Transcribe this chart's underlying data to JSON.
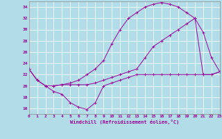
{
  "xlabel": "Windchill (Refroidissement éolien,°C)",
  "background_color": "#b2dde8",
  "grid_color": "#ffffff",
  "line_color": "#990099",
  "xlim": [
    0,
    23
  ],
  "ylim": [
    15,
    35
  ],
  "yticks": [
    16,
    18,
    20,
    22,
    24,
    26,
    28,
    30,
    32,
    34
  ],
  "xticks": [
    0,
    1,
    2,
    3,
    4,
    5,
    6,
    7,
    8,
    9,
    10,
    11,
    12,
    13,
    14,
    15,
    16,
    17,
    18,
    19,
    20,
    21,
    22,
    23
  ],
  "line1_x": [
    0,
    1,
    2,
    3,
    4,
    5,
    6,
    7,
    8,
    9,
    10,
    11,
    12,
    13,
    14,
    15,
    16,
    17,
    18,
    19,
    20,
    21,
    22,
    23
  ],
  "line1_y": [
    23,
    21,
    20,
    19,
    18.5,
    17,
    16.2,
    15.8,
    17,
    20,
    20.5,
    21,
    21.5,
    22,
    22,
    22,
    22,
    22,
    22,
    22,
    22,
    22,
    22,
    22.5
  ],
  "line2_x": [
    0,
    1,
    2,
    3,
    4,
    5,
    6,
    7,
    8,
    9,
    10,
    11,
    12,
    13,
    14,
    15,
    16,
    17,
    18,
    19,
    20,
    21,
    22,
    23
  ],
  "line2_y": [
    23,
    21,
    20,
    20,
    20.2,
    20.2,
    20.2,
    20.2,
    20.5,
    21,
    21.5,
    22,
    22.5,
    23,
    25,
    27,
    28,
    29,
    30,
    31,
    32,
    22,
    22,
    22.5
  ],
  "line3_x": [
    0,
    1,
    2,
    3,
    4,
    5,
    6,
    7,
    8,
    9,
    10,
    11,
    12,
    13,
    14,
    15,
    16,
    17,
    18,
    19,
    20,
    21,
    22,
    23
  ],
  "line3_y": [
    23,
    21,
    20,
    20,
    20.2,
    20.5,
    21,
    22,
    23,
    24.5,
    27.5,
    30,
    32,
    33,
    34,
    34.5,
    34.8,
    34.5,
    34,
    33,
    32,
    29.5,
    25,
    22.5
  ]
}
